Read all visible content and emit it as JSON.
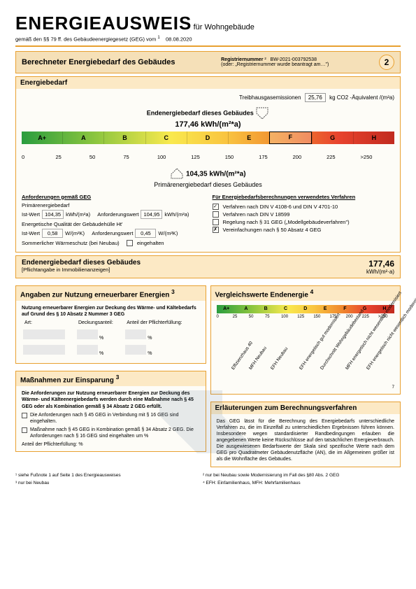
{
  "header": {
    "title": "ENERGIEAUSWEIS",
    "subtitle": "für Wohngebäude",
    "sub_line_prefix": "gemäß den §§ 79 ff. des Gebäudeenergiegesetz (GEG) vom",
    "date": "08.08.2020"
  },
  "reg": {
    "section_title": "Berechneter Energiebedarf des Gebäudes",
    "reg_label": "Registriernummer",
    "reg_value": "BW-2021-003792538",
    "reg_alt": "(oder: „Registriernummer wurde beantragt am…\")",
    "page": "2"
  },
  "energiebedarf": {
    "title": "Energiebedarf",
    "co2_label": "Treibhausgasemissionen",
    "co2_value": "25,76",
    "co2_unit": "kg CO2 -Äquivalent /(m²a)",
    "end_label": "Endenergiebedarf dieses Gebäudes",
    "end_value": "177,46",
    "end_unit": "kWh/(m²*a)",
    "prim_value": "104,35",
    "prim_unit": "kWh/(m²*a)",
    "prim_label": "Primärenergiebedarf dieses Gebäudes",
    "grades": [
      "A+",
      "A",
      "B",
      "C",
      "D",
      "E",
      "F",
      "G",
      "H"
    ],
    "ticks": [
      "0",
      "25",
      "50",
      "75",
      "100",
      "125",
      "150",
      "175",
      "200",
      "225",
      ">250"
    ],
    "grade_highlight": "F"
  },
  "anford": {
    "title": "Anforderungen gemäß GEG",
    "prim_label": "Primärenergiebedarf",
    "ist": "Ist-Wert",
    "prim_ist": "104,35",
    "prim_ist_unit": "kWh/(m²a)",
    "anf": "Anforderungswert",
    "prim_anf": "104,95",
    "prim_anf_unit": "kWh/(m²a)",
    "qual_label": "Energetische Qualität der Gebäudehülle Ht'",
    "qual_ist": "0,58",
    "qual_unit": "W/(m²K)",
    "qual_anf": "0,45",
    "som_label": "Sommerlicher Wärmeschutz (bei Neubau)",
    "som_chk": "eingehalten"
  },
  "verfahren": {
    "title": "Für Energiebedarfsberechnungen verwendetes Verfahren",
    "opt1": "Verfahren nach DIN V 4108-6 und DIN V 4701-10",
    "opt2": "Verfahren nach DIN V 18599",
    "opt3": "Regelung nach § 31 GEG („Modellgebäudeverfahren\")",
    "opt4": "Vereinfachungen nach § 50 Absatz 4 GEG"
  },
  "endresult": {
    "label": "Endenergiebedarf dieses Gebäudes",
    "sub": "[Pflichtangabe in Immobilienanzeigen]",
    "value": "177,46",
    "unit": "kWh/(m²·a)"
  },
  "renew": {
    "title": "Angaben zur Nutzung erneuerbarer Energien",
    "intro": "Nutzung erneuerbarer Energien zur Deckung des Wärme- und Kältebedarfs auf Grund des § 10 Absatz 2 Nummer 3 GEG",
    "col1": "Art:",
    "col2": "Deckungsanteil:",
    "col3": "Anteil der Pflichterfüllung:",
    "pct": "%"
  },
  "mass": {
    "title": "Maßnahmen zur Einsparung",
    "intro": "Die Anforderungen zur Nutzung erneuerbarer Energien zur Deckung des Wärme- und Kälteenergiebedarfs werden durch eine Maßnahme nach § 45 GEG oder als Kombination gemäß § 34 Absatz 2 GEG erfüllt.",
    "b1": "Die Anforderungen nach § 45 GEG in Verbindung mit § 16 GEG sind eingehalten.",
    "b2": "Maßnahme nach § 45 GEG in Kombination gemäß § 34 Absatz 2 GEG. Die Anforderungen nach § 16 GEG sind eingehalten um    %",
    "anteil": "Anteil der Pflichterfüllung:          %"
  },
  "vergleich": {
    "title": "Vergleichswerte Endenergie",
    "grades": [
      "A+",
      "A",
      "B",
      "C",
      "D",
      "E",
      "F",
      "G",
      "H"
    ],
    "ticks": [
      "0",
      "25",
      "50",
      "75",
      "100",
      "125",
      "150",
      "175",
      "200",
      "225",
      ">250"
    ],
    "labels": [
      "Effizienzhaus 40",
      "MFH Neubau",
      "EFH Neubau",
      "EFH energetisch gut modernisiert",
      "Durchschnitt Wohngebäudebestand",
      "MFH energetisch nicht wesentlich modernisiert",
      "EFH energetisch nicht wesentlich modernisiert"
    ],
    "fn": "7"
  },
  "erl": {
    "title": "Erläuterungen zum Berechnungsverfahren",
    "text": "Das GEG lässt für die Berechnung des Energiebedarfs unterschiedliche Verfahren zu, die im Einzelfall zu unterschiedlichen Ergebnissen führen können. Insbesondere wegen standardisierter Randbedingungen erlauben die angegebenen Werte keine Rückschlüsse auf den tatsächlichen Energieverbrauch. Die ausgewiesenen Bedarfswerte der Skala sind spezifische Werte nach dem GEG pro Quadratmeter Gebäudenutzfläche (AN), die im Allgemeinen größer ist als die Wohnfläche des Gebäudes."
  },
  "footnotes": {
    "f1": "¹ siehe Fußnote 1 auf Seite 1 des Energieausweises",
    "f2": "² nur bei Neubau sowie Modernisierung im Fall des §80 Abs. 2 GEG",
    "f3": "³ nur bei Neubau",
    "f4": "⁴ EFH: Einfamilienhaus, MFH: Mehrfamilienhaus"
  }
}
